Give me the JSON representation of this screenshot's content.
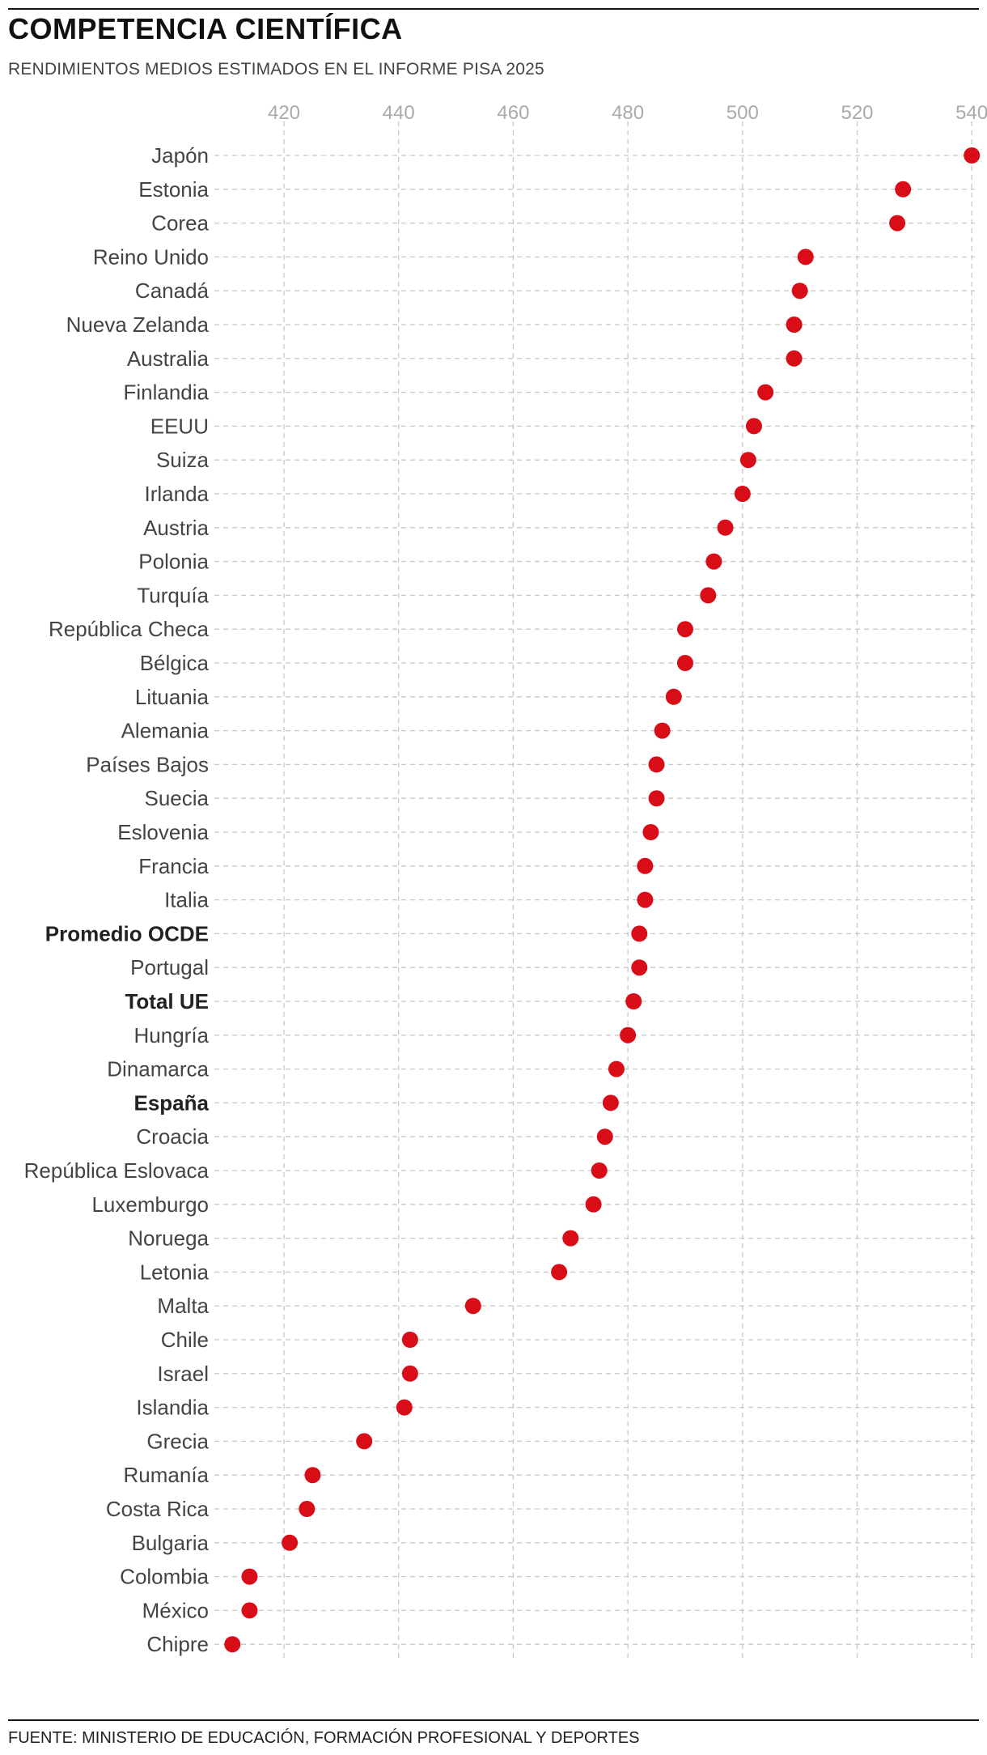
{
  "header": {
    "title": "COMPETENCIA CIENTÍFICA",
    "subtitle": "RENDIMIENTOS MEDIOS ESTIMADOS EN EL INFORME PISA 2025"
  },
  "footer": {
    "source": "FUENTE: MINISTERIO DE EDUCACIÓN, FORMACIÓN PROFESIONAL Y DEPORTES"
  },
  "colors": {
    "dot": "#d90d17",
    "grid": "#c8c8c8",
    "tick_text": "#aaaaaa",
    "label_text": "#444444",
    "label_text_bold": "#222222"
  },
  "chart_data": {
    "type": "scatter",
    "orientation": "horizontal dot plot",
    "title": "COMPETENCIA CIENTÍFICA",
    "subtitle": "RENDIMIENTOS MEDIOS ESTIMADOS EN EL INFORME PISA 2025",
    "xlabel": "",
    "ylabel": "",
    "x_ticks": [
      420,
      440,
      460,
      480,
      500,
      520,
      540
    ],
    "xlim": [
      409,
      542
    ],
    "x_axis_position": "top",
    "grid": true,
    "legend": "none",
    "points": [
      {
        "label": "Japón",
        "value": 540,
        "bold": false
      },
      {
        "label": "Estonia",
        "value": 528,
        "bold": false
      },
      {
        "label": "Corea",
        "value": 527,
        "bold": false
      },
      {
        "label": "Reino Unido",
        "value": 511,
        "bold": false
      },
      {
        "label": "Canadá",
        "value": 510,
        "bold": false
      },
      {
        "label": "Nueva Zelanda",
        "value": 509,
        "bold": false
      },
      {
        "label": "Australia",
        "value": 509,
        "bold": false
      },
      {
        "label": "Finlandia",
        "value": 504,
        "bold": false
      },
      {
        "label": "EEUU",
        "value": 502,
        "bold": false
      },
      {
        "label": "Suiza",
        "value": 501,
        "bold": false
      },
      {
        "label": "Irlanda",
        "value": 500,
        "bold": false
      },
      {
        "label": "Austria",
        "value": 497,
        "bold": false
      },
      {
        "label": "Polonia",
        "value": 495,
        "bold": false
      },
      {
        "label": "Turquía",
        "value": 494,
        "bold": false
      },
      {
        "label": "República Checa",
        "value": 490,
        "bold": false
      },
      {
        "label": "Bélgica",
        "value": 490,
        "bold": false
      },
      {
        "label": "Lituania",
        "value": 488,
        "bold": false
      },
      {
        "label": "Alemania",
        "value": 486,
        "bold": false
      },
      {
        "label": "Países Bajos",
        "value": 485,
        "bold": false
      },
      {
        "label": "Suecia",
        "value": 485,
        "bold": false
      },
      {
        "label": "Eslovenia",
        "value": 484,
        "bold": false
      },
      {
        "label": "Francia",
        "value": 483,
        "bold": false
      },
      {
        "label": "Italia",
        "value": 483,
        "bold": false
      },
      {
        "label": "Promedio OCDE",
        "value": 482,
        "bold": true
      },
      {
        "label": "Portugal",
        "value": 482,
        "bold": false
      },
      {
        "label": "Total UE",
        "value": 481,
        "bold": true
      },
      {
        "label": "Hungría",
        "value": 480,
        "bold": false
      },
      {
        "label": "Dinamarca",
        "value": 478,
        "bold": false
      },
      {
        "label": "España",
        "value": 477,
        "bold": true
      },
      {
        "label": "Croacia",
        "value": 476,
        "bold": false
      },
      {
        "label": "República Eslovaca",
        "value": 475,
        "bold": false
      },
      {
        "label": "Luxemburgo",
        "value": 474,
        "bold": false
      },
      {
        "label": "Noruega",
        "value": 470,
        "bold": false
      },
      {
        "label": "Letonia",
        "value": 468,
        "bold": false
      },
      {
        "label": "Malta",
        "value": 453,
        "bold": false
      },
      {
        "label": "Chile",
        "value": 442,
        "bold": false
      },
      {
        "label": "Israel",
        "value": 442,
        "bold": false
      },
      {
        "label": "Islandia",
        "value": 441,
        "bold": false
      },
      {
        "label": "Grecia",
        "value": 434,
        "bold": false
      },
      {
        "label": "Rumanía",
        "value": 425,
        "bold": false
      },
      {
        "label": "Costa Rica",
        "value": 424,
        "bold": false
      },
      {
        "label": "Bulgaria",
        "value": 421,
        "bold": false
      },
      {
        "label": "Colombia",
        "value": 414,
        "bold": false
      },
      {
        "label": "México",
        "value": 414,
        "bold": false
      },
      {
        "label": "Chipre",
        "value": 411,
        "bold": false
      }
    ]
  }
}
